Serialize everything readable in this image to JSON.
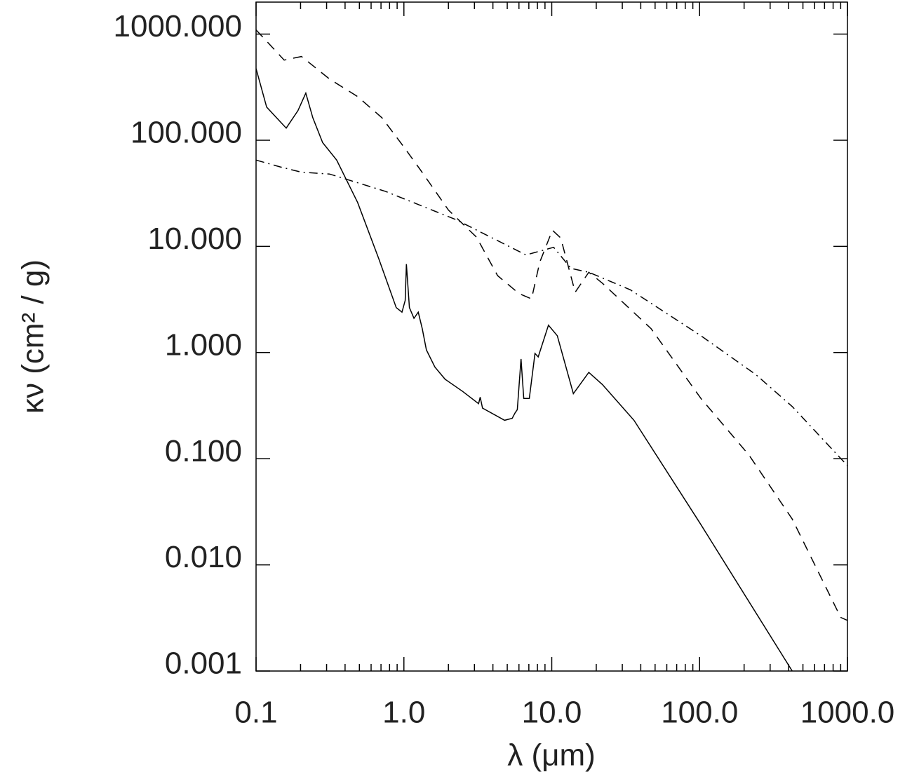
{
  "chart_data": {
    "type": "line",
    "x_label": "λ (μm)",
    "y_label": "κν (cm² / g)",
    "xlog": true,
    "ylog": true,
    "xlim": [
      0.1,
      1000
    ],
    "ylim": [
      0.001,
      2000
    ],
    "xticks": [
      0.1,
      {
        "value": 1,
        "label": "1.0"
      },
      {
        "value": 10,
        "label": "10.0"
      },
      {
        "value": 100,
        "label": "100.0"
      },
      {
        "value": 1000,
        "label": "1000.0"
      }
    ],
    "xminorticks": [
      0.2,
      0.3,
      0.4,
      0.5,
      0.6,
      0.7,
      0.8,
      0.9,
      2,
      3,
      4,
      5,
      6,
      7,
      8,
      9,
      20,
      30,
      40,
      50,
      60,
      70,
      80,
      90,
      200,
      300,
      400,
      500,
      600,
      700,
      800,
      900
    ],
    "yticks": [
      0.001,
      {
        "value": 0.01,
        "label": "0.010"
      },
      {
        "value": 0.1,
        "label": "0.100"
      },
      {
        "value": 1,
        "label": "1.000"
      },
      {
        "value": 10,
        "label": "10.000"
      },
      {
        "value": 100,
        "label": "100.000"
      },
      {
        "value": 1000,
        "label": "1000.000"
      }
    ],
    "series": [
      {
        "color": "#000000",
        "style": "solid",
        "x": [
          0.1,
          0.118,
          0.16,
          0.192,
          0.217,
          0.242,
          0.282,
          0.351,
          0.486,
          0.675,
          0.887,
          0.97,
          1.02,
          1.04,
          1.09,
          1.17,
          1.25,
          1.33,
          1.42,
          1.62,
          1.9,
          2.5,
          3.2,
          3.28,
          3.4,
          4.8,
          5.4,
          5.65,
          5.85,
          6.2,
          6.47,
          7.05,
          7.7,
          8.1,
          9.5,
          10.9,
          14,
          17.8,
          22,
          36,
          100,
          423
        ],
        "values": [
          473,
          205,
          130,
          190,
          278,
          163,
          95,
          65,
          26,
          7.7,
          2.65,
          2.4,
          3.1,
          6.8,
          2.65,
          2.1,
          2.4,
          1.68,
          1.06,
          0.73,
          0.56,
          0.43,
          0.33,
          0.38,
          0.3,
          0.23,
          0.24,
          0.27,
          0.29,
          0.87,
          0.37,
          0.37,
          0.98,
          0.91,
          1.81,
          1.44,
          0.41,
          0.65,
          0.5,
          0.23,
          0.025,
          0.001
        ]
      },
      {
        "color": "#000000",
        "style": "dashed",
        "x": [
          0.1,
          0.155,
          0.203,
          0.314,
          0.486,
          0.71,
          0.99,
          1.3,
          2.0,
          3.1,
          4.3,
          6.0,
          7.3,
          8.3,
          10.1,
          11.5,
          14.4,
          17.8,
          22,
          47,
          102,
          216,
          423,
          900,
          1000
        ],
        "values": [
          1095,
          569,
          614,
          377,
          258,
          163,
          88,
          52,
          22,
          12.2,
          5.3,
          3.6,
          3.2,
          7.1,
          14.2,
          12,
          3.7,
          5.7,
          4.5,
          1.68,
          0.37,
          0.108,
          0.027,
          0.0032,
          0.003
        ]
      },
      {
        "color": "#000000",
        "style": "dashdot",
        "x": [
          0.1,
          0.146,
          0.203,
          0.314,
          0.75,
          2.24,
          6.7,
          10.3,
          13.5,
          17.8,
          34,
          102,
          240,
          423,
          1000
        ],
        "values": [
          65,
          56,
          50,
          48,
          33,
          17.9,
          8.3,
          9.8,
          6.2,
          5.7,
          3.9,
          1.44,
          0.62,
          0.31,
          0.086
        ]
      }
    ]
  }
}
